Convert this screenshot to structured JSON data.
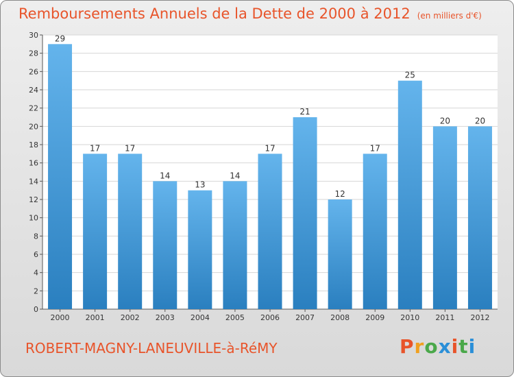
{
  "header": {
    "title": "Remboursements Annuels de la Dette de 2000 à 2012",
    "unit": "(en milliers d'€)"
  },
  "footer": {
    "commune": "ROBERT-MAGNY-LANEUVILLE-à-RéMY",
    "logo": "Proxiti"
  },
  "colors": {
    "title": "#e8542a",
    "bar_top": "#64b4ec",
    "bar_bottom": "#2a7fbf",
    "logo": [
      "#e8542a",
      "#f0a020",
      "#4aa84a",
      "#2a8fd8",
      "#e8542a",
      "#4aa84a",
      "#2a8fd8"
    ]
  },
  "chart_data": {
    "type": "bar",
    "title": "Remboursements Annuels de la Dette de 2000 à 2012",
    "xlabel": "",
    "ylabel": "",
    "categories": [
      "2000",
      "2001",
      "2002",
      "2003",
      "2004",
      "2005",
      "2006",
      "2007",
      "2008",
      "2009",
      "2010",
      "2011",
      "2012"
    ],
    "values": [
      29,
      17,
      17,
      14,
      13,
      14,
      17,
      21,
      12,
      17,
      25,
      20,
      20
    ],
    "ylim": [
      0,
      30
    ],
    "yticks": [
      "0",
      "2",
      "4",
      "6",
      "8",
      "10",
      "12",
      "14",
      "16",
      "18",
      "20",
      "22",
      "24",
      "26",
      "28",
      "30"
    ],
    "grid": true
  }
}
